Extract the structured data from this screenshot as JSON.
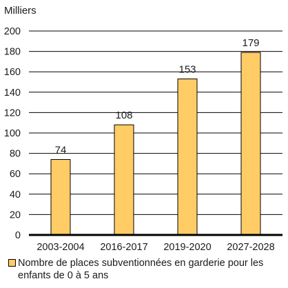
{
  "chart_data": {
    "type": "bar",
    "y_unit_label": "Milliers",
    "categories": [
      "2003-2004",
      "2016-2017",
      "2019-2020",
      "2027-2028"
    ],
    "series": [
      {
        "name": "Nombre de places subventionnées en garderie pour les enfants de 0 à 5 ans",
        "values": [
          74,
          108,
          153,
          179
        ],
        "data_labels": [
          "74",
          "108",
          "153",
          "179"
        ],
        "color": "#FFCC66",
        "border_color": "#000000"
      }
    ],
    "ylim": [
      0,
      200
    ],
    "yticks": [
      0,
      20,
      40,
      60,
      80,
      100,
      120,
      140,
      160,
      180,
      200
    ],
    "grid": true,
    "legend_position": "bottom"
  }
}
